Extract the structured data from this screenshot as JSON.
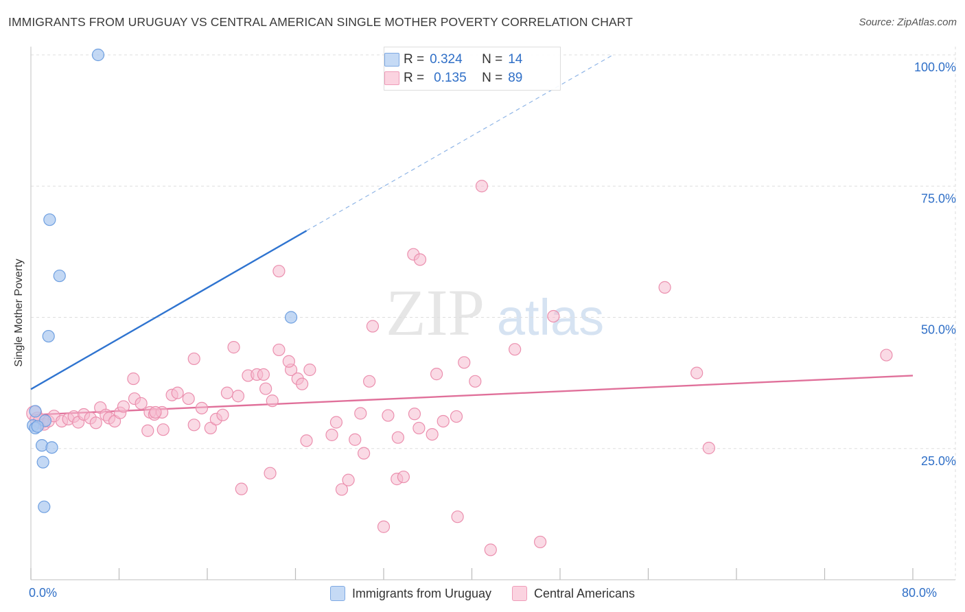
{
  "header": {
    "title": "IMMIGRANTS FROM URUGUAY VS CENTRAL AMERICAN SINGLE MOTHER POVERTY CORRELATION CHART",
    "source": "Source: ZipAtlas.com"
  },
  "watermark": {
    "zip": "ZIP",
    "atlas": "atlas"
  },
  "legend": {
    "r_label": "R =",
    "n_label": "N =",
    "series1": {
      "r": "0.324",
      "n": "14"
    },
    "series2": {
      "r": "0.135",
      "n": "89"
    }
  },
  "colors": {
    "blue_fill": "#a9c8f0",
    "blue_stroke": "#6e9fe0",
    "blue_line": "#2f74d0",
    "pink_fill": "#f6bcd0",
    "pink_stroke": "#eb8fae",
    "pink_line": "#e0709a",
    "grid": "#dddddd",
    "tick_label": "#2f6fc7"
  },
  "chart_data": {
    "type": "scatter",
    "title": "IMMIGRANTS FROM URUGUAY VS CENTRAL AMERICAN SINGLE MOTHER POVERTY CORRELATION CHART",
    "xlabel": "",
    "ylabel": "Single Mother Poverty",
    "xlim": [
      0,
      80
    ],
    "ylim": [
      0,
      100
    ],
    "x_tick_labels": [
      {
        "value": 0,
        "label": "0.0%"
      },
      {
        "value": 80,
        "label": "80.0%"
      }
    ],
    "y_tick_labels": [
      {
        "value": 25,
        "label": "25.0%"
      },
      {
        "value": 50,
        "label": "50.0%"
      },
      {
        "value": 75,
        "label": "75.0%"
      },
      {
        "value": 100,
        "label": "100.0%"
      }
    ],
    "grid": true,
    "legend_position": "top-center",
    "series": [
      {
        "name": "Immigrants from Uruguay",
        "color": "#a9c8f0",
        "points": [
          [
            6.1,
            100.0
          ],
          [
            1.7,
            68.6
          ],
          [
            2.6,
            57.9
          ],
          [
            1.6,
            46.4
          ],
          [
            23.6,
            50.0
          ],
          [
            0.4,
            32.1
          ],
          [
            1.3,
            30.3
          ],
          [
            0.2,
            29.4
          ],
          [
            0.4,
            28.9
          ],
          [
            1.0,
            25.6
          ],
          [
            1.9,
            25.2
          ],
          [
            1.1,
            22.4
          ],
          [
            1.2,
            13.9
          ],
          [
            0.6,
            29.2
          ]
        ],
        "trendline": {
          "x_start": 0,
          "x_end": 25.0,
          "y_start": 36.3,
          "y_end": 66.5,
          "dashed_to_x": 52.8,
          "dashed_to_y": 100.0
        }
      },
      {
        "name": "Central Americans",
        "color": "#f6bcd0",
        "points": [
          [
            0.3,
            31.7
          ],
          [
            0.6,
            30.5
          ],
          [
            0.9,
            30.2
          ],
          [
            1.2,
            29.6
          ],
          [
            1.6,
            30.2
          ],
          [
            2.1,
            31.2
          ],
          [
            2.8,
            30.2
          ],
          [
            3.4,
            30.6
          ],
          [
            3.9,
            31.1
          ],
          [
            4.3,
            30.0
          ],
          [
            4.8,
            31.5
          ],
          [
            5.4,
            30.8
          ],
          [
            5.9,
            29.9
          ],
          [
            6.3,
            32.8
          ],
          [
            6.8,
            31.4
          ],
          [
            7.1,
            30.8
          ],
          [
            7.6,
            30.2
          ],
          [
            8.1,
            31.8
          ],
          [
            8.4,
            33.0
          ],
          [
            9.4,
            34.5
          ],
          [
            10.0,
            33.6
          ],
          [
            10.8,
            31.9
          ],
          [
            11.2,
            31.5
          ],
          [
            11.9,
            31.9
          ],
          [
            12.8,
            35.2
          ],
          [
            13.3,
            35.6
          ],
          [
            14.3,
            34.5
          ],
          [
            14.8,
            29.5
          ],
          [
            15.5,
            32.7
          ],
          [
            16.3,
            28.9
          ],
          [
            16.8,
            30.6
          ],
          [
            17.4,
            31.4
          ],
          [
            18.8,
            35.0
          ],
          [
            19.7,
            38.9
          ],
          [
            20.5,
            39.1
          ],
          [
            21.3,
            36.4
          ],
          [
            21.9,
            34.1
          ],
          [
            22.5,
            43.8
          ],
          [
            23.6,
            40.0
          ],
          [
            24.2,
            38.3
          ],
          [
            25.3,
            40.0
          ],
          [
            27.3,
            27.6
          ],
          [
            27.7,
            30.0
          ],
          [
            29.4,
            26.7
          ],
          [
            29.9,
            31.7
          ],
          [
            31.0,
            48.3
          ],
          [
            32.4,
            31.3
          ],
          [
            33.3,
            27.1
          ],
          [
            34.8,
            31.6
          ],
          [
            35.2,
            28.9
          ],
          [
            36.4,
            27.7
          ],
          [
            37.4,
            30.2
          ],
          [
            38.6,
            31.1
          ],
          [
            39.3,
            41.4
          ],
          [
            40.3,
            37.8
          ],
          [
            40.9,
            75.0
          ],
          [
            43.9,
            43.9
          ],
          [
            47.4,
            50.2
          ],
          [
            57.5,
            55.7
          ],
          [
            60.4,
            39.4
          ],
          [
            61.5,
            25.1
          ],
          [
            77.6,
            42.8
          ],
          [
            34.7,
            62.0
          ],
          [
            35.3,
            61.0
          ],
          [
            22.5,
            58.8
          ],
          [
            18.4,
            44.3
          ],
          [
            14.8,
            42.1
          ],
          [
            9.3,
            38.3
          ],
          [
            11.3,
            31.9
          ],
          [
            12.0,
            28.6
          ],
          [
            17.8,
            35.6
          ],
          [
            21.1,
            39.1
          ],
          [
            23.4,
            41.6
          ],
          [
            24.6,
            37.3
          ],
          [
            30.7,
            37.8
          ],
          [
            36.8,
            39.2
          ],
          [
            25.0,
            26.5
          ],
          [
            30.2,
            24.1
          ],
          [
            21.7,
            20.3
          ],
          [
            19.1,
            17.3
          ],
          [
            28.2,
            17.2
          ],
          [
            28.8,
            19.0
          ],
          [
            33.2,
            19.2
          ],
          [
            33.8,
            19.6
          ],
          [
            32.0,
            10.1
          ],
          [
            38.7,
            12.0
          ],
          [
            41.7,
            5.7
          ],
          [
            46.2,
            7.2
          ],
          [
            10.6,
            28.4
          ]
        ],
        "trendline": {
          "x_start": 0,
          "x_end": 80,
          "y_start": 31.4,
          "y_end": 38.9
        }
      }
    ]
  }
}
